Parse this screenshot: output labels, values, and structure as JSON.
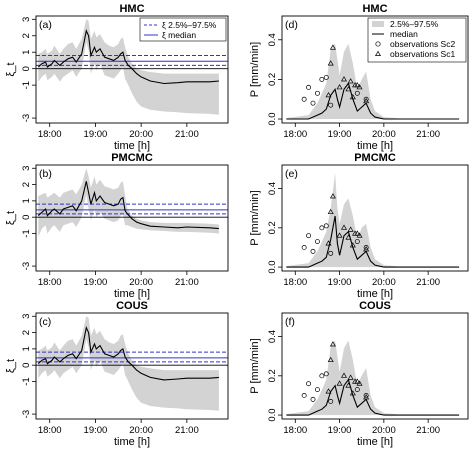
{
  "chart_data": [
    {
      "type": "area",
      "panel": "(a)",
      "title": "HMC",
      "ylabel": "ξ_t",
      "xlabel": "time [h]",
      "x_ticks": [
        "18:00",
        "19:00",
        "20:00",
        "21:00"
      ],
      "y_ticks": [
        "-3",
        "-1",
        "0",
        "1",
        "2",
        "3"
      ],
      "xlim": [
        17.7,
        21.9
      ],
      "ylim": [
        -3.3,
        3.2
      ],
      "legend": {
        "position": "top-right",
        "entries": [
          "ξ 2.5%–97.5%",
          "ξ median"
        ]
      },
      "ref_lines": {
        "median": 0.45,
        "q_low": 0.2,
        "q_high": 0.8,
        "zero": 0
      },
      "series": [
        {
          "name": "median",
          "x": [
            17.75,
            17.83,
            17.91,
            17.95,
            18.05,
            18.1,
            18.22,
            18.3,
            18.4,
            18.5,
            18.58,
            18.7,
            18.8,
            18.85,
            18.9,
            18.98,
            19.02,
            19.1,
            19.2,
            19.3,
            19.4,
            19.5,
            19.55,
            19.6,
            19.65,
            19.72,
            19.8,
            19.9,
            20.0,
            20.2,
            20.5,
            20.8,
            21.0,
            21.5,
            21.7
          ],
          "y": [
            0.1,
            0.3,
            0.4,
            0.1,
            0.3,
            0.5,
            0.2,
            0.4,
            0.6,
            0.7,
            0.4,
            0.9,
            2.3,
            2.0,
            0.8,
            1.3,
            1.0,
            1.2,
            0.7,
            0.6,
            0.5,
            0.7,
            0.9,
            1.0,
            0.5,
            0.2,
            0.0,
            -0.3,
            -0.5,
            -0.75,
            -0.9,
            -0.85,
            -0.8,
            -0.8,
            -0.75
          ]
        },
        {
          "name": "2.5%–97.5%",
          "upper": [
            0.9,
            1.0,
            1.2,
            0.9,
            1.1,
            1.4,
            0.9,
            1.2,
            1.5,
            1.6,
            1.2,
            1.8,
            3.0,
            2.9,
            1.8,
            2.3,
            1.9,
            2.1,
            1.6,
            1.4,
            1.3,
            1.5,
            1.8,
            1.9,
            1.3,
            0.7,
            0.3,
            0.0,
            -0.1,
            -0.2,
            -0.3,
            -0.3,
            -0.3,
            -0.3,
            -0.3
          ],
          "lower": [
            -0.8,
            -0.5,
            -0.3,
            -0.7,
            -0.5,
            -0.3,
            -0.8,
            -0.5,
            -0.3,
            -0.1,
            -0.5,
            0.0,
            1.6,
            1.1,
            -0.3,
            0.3,
            -0.1,
            0.3,
            -0.4,
            -0.5,
            -0.6,
            -0.3,
            -0.1,
            0.1,
            -0.6,
            -1.0,
            -1.5,
            -2.0,
            -2.3,
            -2.5,
            -2.6,
            -2.65,
            -2.7,
            -2.75,
            -2.8
          ]
        }
      ]
    },
    {
      "type": "scatter",
      "panel": "(d)",
      "title": "HMC",
      "ylabel": "P [mm/min]",
      "xlabel": "time [h]",
      "x_ticks": [
        "18:00",
        "19:00",
        "20:00",
        "21:00"
      ],
      "y_ticks": [
        "0.0",
        "0.2",
        "0.4"
      ],
      "xlim": [
        17.7,
        21.9
      ],
      "ylim": [
        -0.02,
        0.52
      ],
      "legend": {
        "position": "top-right",
        "entries": [
          "2.5%–97.5%",
          "median",
          "observations Sc2",
          "observations Sc1"
        ]
      },
      "series": [
        {
          "name": "median",
          "x": [
            17.8,
            18.3,
            18.5,
            18.6,
            18.7,
            18.8,
            18.9,
            18.95,
            19.0,
            19.1,
            19.2,
            19.3,
            19.4,
            19.5,
            19.6,
            19.7,
            19.8,
            20.0,
            20.5,
            21.0,
            21.7
          ],
          "y": [
            0.0,
            0.0,
            0.02,
            0.03,
            0.05,
            0.12,
            0.15,
            0.1,
            0.06,
            0.15,
            0.18,
            0.1,
            0.04,
            0.06,
            0.08,
            0.03,
            0.01,
            0.0,
            0.0,
            0.0,
            0.0
          ]
        },
        {
          "name": "2.5%–97.5%",
          "upper": [
            0.005,
            0.02,
            0.08,
            0.13,
            0.18,
            0.35,
            0.38,
            0.3,
            0.22,
            0.34,
            0.38,
            0.28,
            0.15,
            0.2,
            0.24,
            0.1,
            0.04,
            0.01,
            0.0,
            0.0,
            0.0
          ]
        },
        {
          "name": "observations Sc2",
          "x": [
            18.2,
            18.3,
            18.4,
            18.5,
            18.6,
            18.7,
            18.8,
            19.4,
            19.6
          ],
          "y": [
            0.1,
            0.16,
            0.08,
            0.13,
            0.2,
            0.21,
            0.07,
            0.13,
            0.1
          ]
        },
        {
          "name": "observations Sc1",
          "x": [
            18.75,
            18.8,
            18.85,
            19.0,
            19.1,
            19.2,
            19.25,
            19.3,
            19.35,
            19.4,
            19.45,
            19.6
          ],
          "y": [
            0.12,
            0.28,
            0.36,
            0.16,
            0.2,
            0.15,
            0.19,
            0.11,
            0.17,
            0.17,
            0.16,
            0.09
          ]
        }
      ]
    },
    {
      "type": "area",
      "panel": "(b)",
      "title": "PMCMC",
      "ylabel": "ξ_t",
      "xlabel": "time [h]",
      "x_ticks": [
        "18:00",
        "19:00",
        "20:00",
        "21:00"
      ],
      "y_ticks": [
        "-3",
        "-1",
        "0",
        "1",
        "2",
        "3"
      ],
      "xlim": [
        17.7,
        21.9
      ],
      "ylim": [
        -3.3,
        3.2
      ],
      "ref_lines": {
        "median": 0.45,
        "q_low": 0.2,
        "q_high": 0.8,
        "zero": 0
      },
      "series": [
        {
          "name": "median",
          "x": [
            17.75,
            17.83,
            17.91,
            17.95,
            18.05,
            18.1,
            18.22,
            18.3,
            18.4,
            18.5,
            18.58,
            18.7,
            18.8,
            18.85,
            18.9,
            18.98,
            19.02,
            19.1,
            19.2,
            19.3,
            19.4,
            19.5,
            19.55,
            19.6,
            19.65,
            19.7,
            19.8,
            19.9,
            20.0,
            20.2,
            20.5,
            20.8,
            21.0,
            21.5,
            21.7
          ],
          "y": [
            0.1,
            0.3,
            0.5,
            0.1,
            0.4,
            0.5,
            0.2,
            0.5,
            0.6,
            0.7,
            0.4,
            1.0,
            2.2,
            1.5,
            0.8,
            1.5,
            1.0,
            1.3,
            0.9,
            0.8,
            0.7,
            0.8,
            1.1,
            1.2,
            0.4,
            0.2,
            -0.1,
            -0.3,
            -0.4,
            -0.55,
            -0.6,
            -0.65,
            -0.6,
            -0.65,
            -0.7
          ]
        },
        {
          "name": "2.5%–97.5%",
          "upper": [
            1.3,
            1.4,
            1.5,
            1.2,
            1.4,
            1.5,
            1.2,
            1.5,
            1.6,
            1.7,
            1.4,
            2.0,
            3.0,
            2.5,
            1.8,
            2.5,
            2.0,
            2.3,
            1.9,
            1.8,
            1.7,
            1.8,
            2.1,
            2.2,
            1.3,
            0.5,
            0.1,
            -0.1,
            -0.2,
            -0.3,
            -0.35,
            -0.35,
            -0.35,
            -0.4,
            -0.45
          ],
          "lower": [
            -1.2,
            -0.7,
            -0.5,
            -1.0,
            -0.6,
            -0.5,
            -0.9,
            -0.5,
            -0.4,
            -0.3,
            -0.6,
            0.0,
            1.4,
            0.5,
            -0.2,
            0.5,
            0.0,
            0.3,
            -0.1,
            -0.2,
            -0.3,
            -0.2,
            0.1,
            0.2,
            -0.5,
            -0.5,
            -0.6,
            -0.7,
            -0.75,
            -0.8,
            -0.85,
            -0.9,
            -0.9,
            -0.95,
            -1.0
          ]
        }
      ]
    },
    {
      "type": "scatter",
      "panel": "(e)",
      "title": "PMCMC",
      "ylabel": "P [mm/min]",
      "xlabel": "time [h]",
      "x_ticks": [
        "18:00",
        "19:00",
        "20:00",
        "21:00"
      ],
      "y_ticks": [
        "0.0",
        "0.2",
        "0.4"
      ],
      "xlim": [
        17.7,
        21.9
      ],
      "ylim": [
        -0.02,
        0.52
      ],
      "series": [
        {
          "name": "median",
          "x": [
            17.8,
            18.3,
            18.5,
            18.6,
            18.7,
            18.8,
            18.9,
            18.95,
            19.0,
            19.1,
            19.2,
            19.3,
            19.4,
            19.5,
            19.6,
            19.7,
            19.8,
            20.0,
            20.5,
            21.0,
            21.7
          ],
          "y": [
            0.0,
            0.0,
            0.02,
            0.03,
            0.05,
            0.14,
            0.26,
            0.12,
            0.06,
            0.16,
            0.18,
            0.1,
            0.04,
            0.06,
            0.08,
            0.03,
            0.01,
            0.0,
            0.0,
            0.0,
            0.0
          ]
        },
        {
          "name": "2.5%–97.5%",
          "upper": [
            0.005,
            0.02,
            0.08,
            0.13,
            0.18,
            0.3,
            0.48,
            0.3,
            0.22,
            0.32,
            0.35,
            0.26,
            0.14,
            0.2,
            0.22,
            0.1,
            0.04,
            0.01,
            0.0,
            0.0,
            0.0
          ]
        },
        {
          "name": "observations Sc2",
          "x": [
            18.2,
            18.3,
            18.4,
            18.5,
            18.6,
            18.7,
            18.8,
            19.4,
            19.6
          ],
          "y": [
            0.1,
            0.16,
            0.08,
            0.13,
            0.2,
            0.21,
            0.07,
            0.13,
            0.1
          ]
        },
        {
          "name": "observations Sc1",
          "x": [
            18.75,
            18.8,
            18.85,
            19.0,
            19.1,
            19.2,
            19.25,
            19.3,
            19.35,
            19.4,
            19.45,
            19.6
          ],
          "y": [
            0.12,
            0.28,
            0.36,
            0.16,
            0.2,
            0.15,
            0.19,
            0.11,
            0.17,
            0.17,
            0.16,
            0.09
          ]
        }
      ]
    },
    {
      "type": "area",
      "panel": "(c)",
      "title": "COUS",
      "ylabel": "ξ_t",
      "xlabel": "time [h]",
      "x_ticks": [
        "18:00",
        "19:00",
        "20:00",
        "21:00"
      ],
      "y_ticks": [
        "-3",
        "-1",
        "0",
        "1",
        "2",
        "3"
      ],
      "xlim": [
        17.7,
        21.9
      ],
      "ylim": [
        -3.3,
        3.2
      ],
      "ref_lines": {
        "median": 0.45,
        "q_low": 0.2,
        "q_high": 0.8,
        "zero": 0
      },
      "series": [
        {
          "name": "median",
          "x": [
            17.75,
            17.83,
            17.91,
            17.95,
            18.05,
            18.1,
            18.22,
            18.3,
            18.4,
            18.5,
            18.58,
            18.7,
            18.8,
            18.85,
            18.9,
            18.98,
            19.02,
            19.1,
            19.2,
            19.3,
            19.4,
            19.5,
            19.55,
            19.6,
            19.65,
            19.72,
            19.8,
            19.9,
            20.0,
            20.2,
            20.5,
            20.8,
            21.0,
            21.5,
            21.7
          ],
          "y": [
            0.1,
            0.3,
            0.4,
            0.1,
            0.3,
            0.5,
            0.2,
            0.4,
            0.6,
            0.7,
            0.4,
            0.9,
            2.3,
            2.0,
            0.8,
            1.3,
            1.0,
            1.2,
            0.7,
            0.6,
            0.5,
            0.7,
            0.9,
            1.0,
            0.5,
            0.2,
            0.0,
            -0.3,
            -0.5,
            -0.75,
            -0.9,
            -0.85,
            -0.8,
            -0.8,
            -0.75
          ]
        },
        {
          "name": "2.5%–97.5%",
          "upper": [
            0.9,
            1.0,
            1.2,
            0.9,
            1.1,
            1.4,
            0.9,
            1.2,
            1.5,
            1.6,
            1.2,
            1.8,
            3.0,
            2.9,
            1.8,
            2.3,
            1.9,
            2.1,
            1.6,
            1.4,
            1.3,
            1.5,
            1.8,
            1.9,
            1.3,
            0.7,
            0.3,
            0.0,
            -0.1,
            -0.2,
            -0.3,
            -0.3,
            -0.3,
            -0.3,
            -0.3
          ],
          "lower": [
            -0.8,
            -0.5,
            -0.3,
            -0.7,
            -0.5,
            -0.3,
            -0.8,
            -0.5,
            -0.3,
            -0.1,
            -0.5,
            0.0,
            1.6,
            1.1,
            -0.3,
            0.3,
            -0.1,
            0.3,
            -0.4,
            -0.5,
            -0.6,
            -0.3,
            -0.1,
            0.1,
            -0.6,
            -1.0,
            -1.5,
            -2.0,
            -2.3,
            -2.5,
            -2.6,
            -2.65,
            -2.7,
            -2.75,
            -2.8
          ]
        }
      ]
    },
    {
      "type": "scatter",
      "panel": "(f)",
      "title": "COUS",
      "ylabel": "P [mm/min]",
      "xlabel": "time [h]",
      "x_ticks": [
        "18:00",
        "19:00",
        "20:00",
        "21:00"
      ],
      "y_ticks": [
        "0.0",
        "0.2",
        "0.4"
      ],
      "xlim": [
        17.7,
        21.9
      ],
      "ylim": [
        -0.02,
        0.52
      ],
      "series": [
        {
          "name": "median",
          "x": [
            17.8,
            18.3,
            18.5,
            18.6,
            18.7,
            18.8,
            18.9,
            18.95,
            19.0,
            19.1,
            19.2,
            19.3,
            19.4,
            19.5,
            19.6,
            19.7,
            19.8,
            20.0,
            20.5,
            21.0,
            21.7
          ],
          "y": [
            0.0,
            0.0,
            0.02,
            0.03,
            0.05,
            0.12,
            0.15,
            0.1,
            0.06,
            0.15,
            0.18,
            0.1,
            0.04,
            0.06,
            0.08,
            0.03,
            0.01,
            0.0,
            0.0,
            0.0,
            0.0
          ]
        },
        {
          "name": "2.5%–97.5%",
          "upper": [
            0.005,
            0.02,
            0.08,
            0.13,
            0.18,
            0.35,
            0.38,
            0.3,
            0.22,
            0.34,
            0.38,
            0.28,
            0.15,
            0.2,
            0.24,
            0.1,
            0.04,
            0.01,
            0.0,
            0.0,
            0.0
          ]
        },
        {
          "name": "observations Sc2",
          "x": [
            18.2,
            18.3,
            18.4,
            18.5,
            18.6,
            18.7,
            18.8,
            19.4,
            19.6
          ],
          "y": [
            0.1,
            0.16,
            0.08,
            0.13,
            0.2,
            0.21,
            0.07,
            0.13,
            0.1
          ]
        },
        {
          "name": "observations Sc1",
          "x": [
            18.75,
            18.8,
            18.85,
            19.0,
            19.1,
            19.2,
            19.25,
            19.3,
            19.35,
            19.4,
            19.45,
            19.6
          ],
          "y": [
            0.12,
            0.28,
            0.36,
            0.16,
            0.2,
            0.15,
            0.19,
            0.11,
            0.17,
            0.17,
            0.16,
            0.09
          ]
        }
      ]
    }
  ],
  "colors": {
    "band": "#d3d3d3",
    "median_line": "#000000",
    "ref_line": "#3333cc"
  }
}
